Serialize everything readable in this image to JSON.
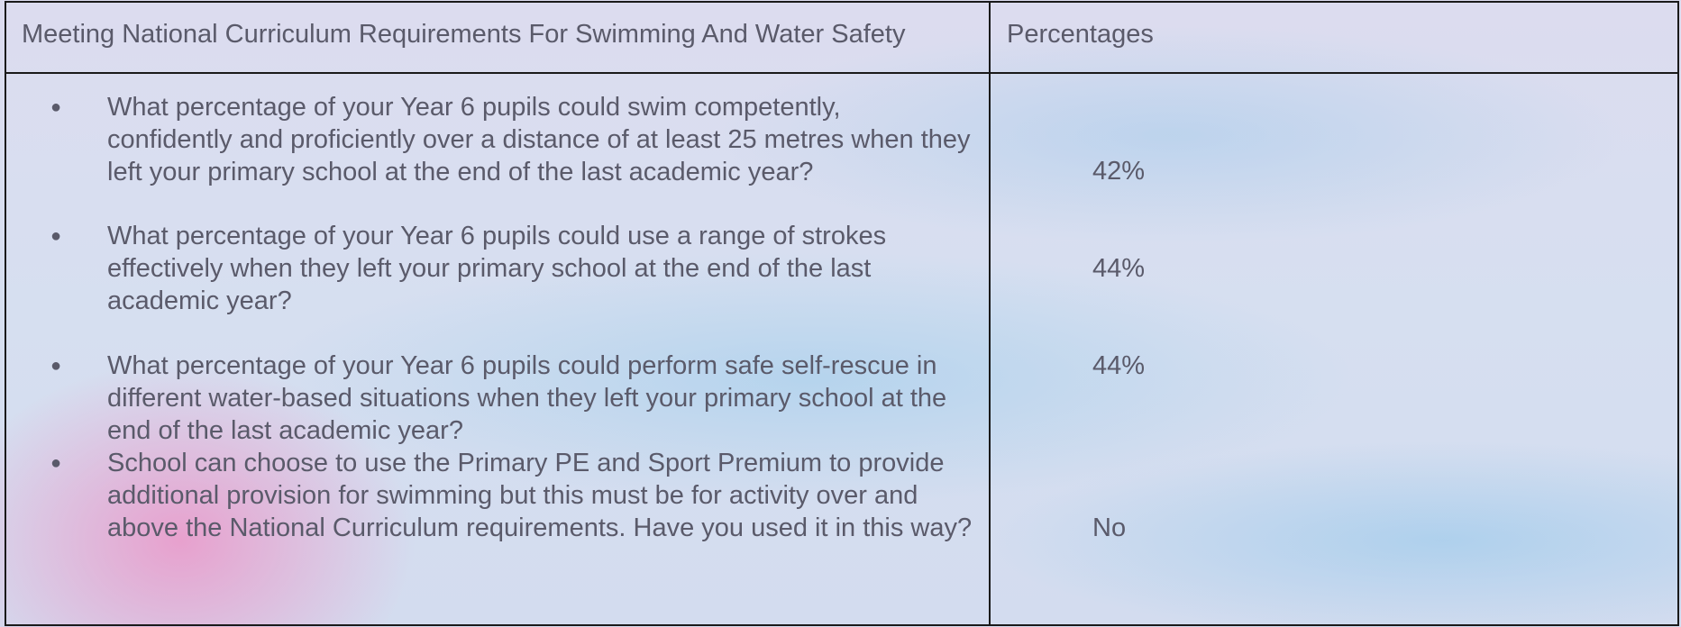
{
  "table": {
    "header": [
      "Meeting National Curriculum Requirements For Swimming And Water Safety",
      "Percentages"
    ],
    "rows": [
      [
        "What percentage of your Year 6 pupils could swim competently, confidently and proficiently over a distance of at least 25 metres when they left your primary school at the end of the last academic year?",
        "42%"
      ],
      [
        "What percentage of your Year 6 pupils could use a range of strokes effectively when they left your primary school at the end of the last academic year?",
        "44%"
      ],
      [
        "What percentage of your Year 6 pupils could perform safe self-rescue in different water-based situations when they left your primary school at the end of the last academic year?",
        "44%"
      ],
      [
        "School can choose to use the Primary PE and Sport Premium to provide additional provision for swimming but this must be for activity over and above the National Curriculum requirements. Have you used it in this way?",
        "No"
      ]
    ]
  }
}
